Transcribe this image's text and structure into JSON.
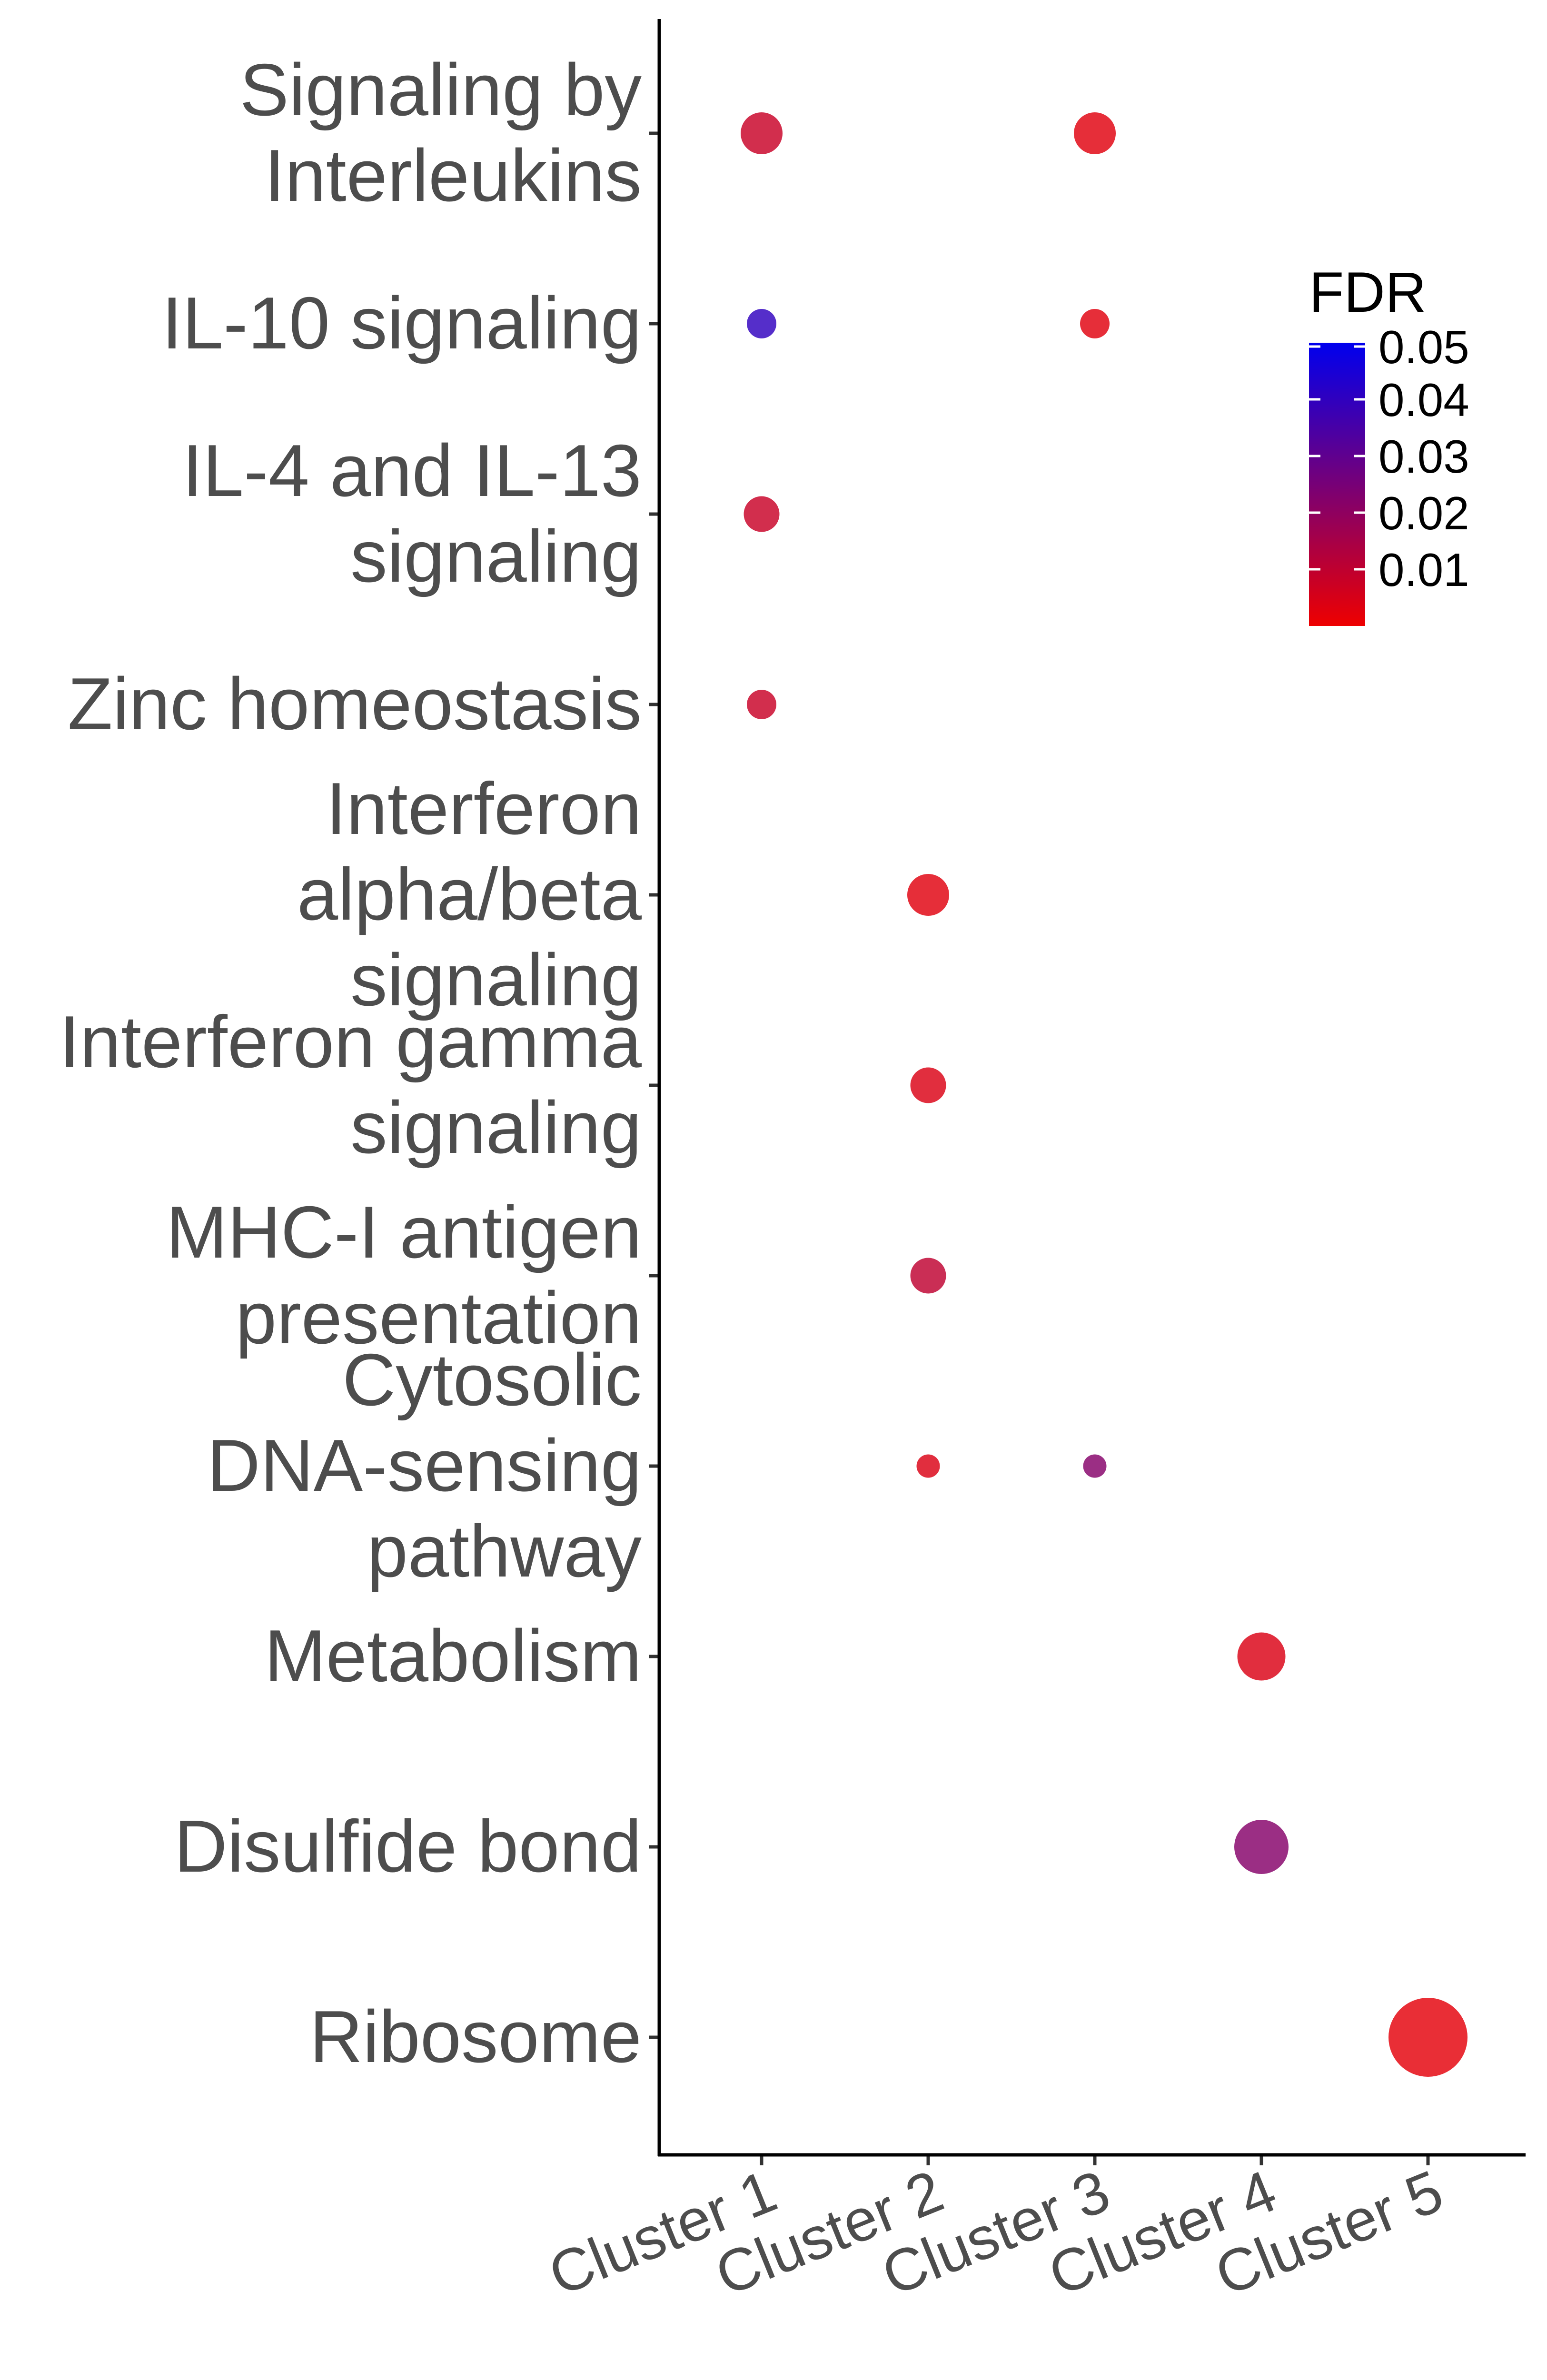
{
  "chart_data": {
    "type": "scatter",
    "title": "",
    "xlabel": "",
    "ylabel": "",
    "categories_x": [
      "Cluster 1",
      "Cluster 2",
      "Cluster 3",
      "Cluster 4",
      "Cluster 5"
    ],
    "categories_y": [
      "Signaling by Interleukins",
      "IL-10 signaling",
      "IL-4 and IL-13 signaling",
      "Zinc homeostasis",
      "Interferon alpha/beta signaling",
      "Interferon gamma signaling",
      "MHC-I antigen presentation",
      "Cytosolic DNA-sensing pathway",
      "Metabolism",
      "Disulfide bond",
      "Ribosome"
    ],
    "y_label_lines": [
      [
        "Signaling by",
        "Interleukins"
      ],
      [
        "IL-10 signaling"
      ],
      [
        "IL-4 and IL-13",
        "signaling"
      ],
      [
        "Zinc homeostasis"
      ],
      [
        "Interferon",
        "alpha/beta",
        "signaling"
      ],
      [
        "Interferon gamma",
        "signaling"
      ],
      [
        "MHC-I antigen",
        "presentation"
      ],
      [
        "Cytosolic",
        "DNA-sensing",
        "pathway"
      ],
      [
        "Metabolism"
      ],
      [
        "Disulfide bond"
      ],
      [
        "Ribosome"
      ]
    ],
    "points": [
      {
        "x": "Cluster 1",
        "y": "Signaling by Interleukins",
        "fdr": 0.008,
        "size": 4
      },
      {
        "x": "Cluster 3",
        "y": "Signaling by Interleukins",
        "fdr": 0.003,
        "size": 4
      },
      {
        "x": "Cluster 1",
        "y": "IL-10 signaling",
        "fdr": 0.04,
        "size": 2
      },
      {
        "x": "Cluster 3",
        "y": "IL-10 signaling",
        "fdr": 0.003,
        "size": 2
      },
      {
        "x": "Cluster 1",
        "y": "IL-4 and IL-13 signaling",
        "fdr": 0.008,
        "size": 3
      },
      {
        "x": "Cluster 1",
        "y": "Zinc homeostasis",
        "fdr": 0.008,
        "size": 2
      },
      {
        "x": "Cluster 2",
        "y": "Interferon alpha/beta signaling",
        "fdr": 0.003,
        "size": 4
      },
      {
        "x": "Cluster 2",
        "y": "Interferon gamma signaling",
        "fdr": 0.004,
        "size": 3
      },
      {
        "x": "Cluster 2",
        "y": "MHC-I antigen presentation",
        "fdr": 0.01,
        "size": 3
      },
      {
        "x": "Cluster 2",
        "y": "Cytosolic DNA-sensing pathway",
        "fdr": 0.004,
        "size": 1
      },
      {
        "x": "Cluster 3",
        "y": "Cytosolic DNA-sensing pathway",
        "fdr": 0.022,
        "size": 1
      },
      {
        "x": "Cluster 4",
        "y": "Metabolism",
        "fdr": 0.004,
        "size": 5
      },
      {
        "x": "Cluster 4",
        "y": "Disulfide bond",
        "fdr": 0.022,
        "size": 6
      },
      {
        "x": "Cluster 5",
        "y": "Ribosome",
        "fdr": 0.002,
        "size": 10
      }
    ],
    "color_scale": {
      "title": "FDR",
      "range": [
        0,
        0.05
      ],
      "ticks": [
        0.01,
        0.02,
        0.03,
        0.04,
        0.05
      ],
      "tick_labels": [
        "0.01",
        "0.02",
        "0.03",
        "0.04",
        "0.05"
      ],
      "low_color": "#ee0000",
      "high_color": "#0000ee"
    },
    "grid": false,
    "legend_position": "top-right"
  }
}
